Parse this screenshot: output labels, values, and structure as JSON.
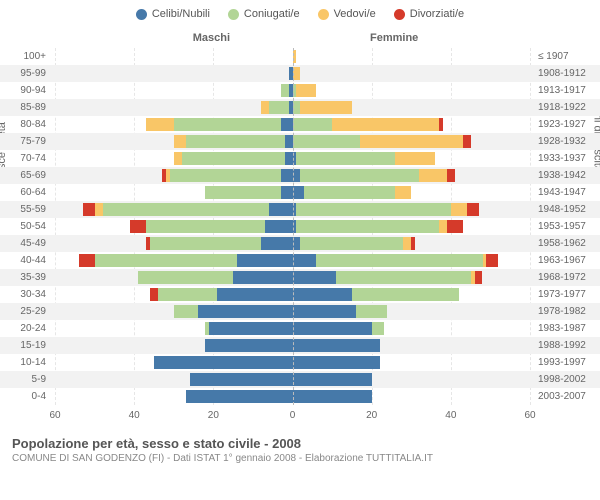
{
  "legend": [
    {
      "label": "Celibi/Nubili",
      "color": "#4679a9"
    },
    {
      "label": "Coniugati/e",
      "color": "#b2d596"
    },
    {
      "label": "Vedovi/e",
      "color": "#f9c667"
    },
    {
      "label": "Divorziati/e",
      "color": "#d53a2a"
    }
  ],
  "side_labels": {
    "left": "Maschi",
    "right": "Femmine"
  },
  "axis_titles": {
    "left": "Fasce di età",
    "right": "Anni di nascita"
  },
  "x_ticks_male": [
    60,
    40,
    20,
    0
  ],
  "x_ticks_female": [
    0,
    20,
    40,
    60
  ],
  "x_max": 60,
  "title": "Popolazione per età, sesso e stato civile - 2008",
  "subtitle": "COMUNE DI SAN GODENZO (FI) - Dati ISTAT 1° gennaio 2008 - Elaborazione TUTTITALIA.IT",
  "colors": {
    "celibi": "#4679a9",
    "coniugati": "#b2d596",
    "vedovi": "#f9c667",
    "divorziati": "#d53a2a",
    "row_alt": "#f2f2f2",
    "grid": "#e6e6e6",
    "center_dash": "#bbbbbb",
    "text": "#666666",
    "bg": "#ffffff"
  },
  "rows": [
    {
      "age": "100+",
      "birth": "≤ 1907",
      "m": [
        0,
        0,
        0,
        0
      ],
      "f": [
        0,
        0,
        1,
        0
      ]
    },
    {
      "age": "95-99",
      "birth": "1908-1912",
      "m": [
        1,
        0,
        0,
        0
      ],
      "f": [
        0,
        0,
        2,
        0
      ]
    },
    {
      "age": "90-94",
      "birth": "1913-1917",
      "m": [
        1,
        2,
        0,
        0
      ],
      "f": [
        0,
        1,
        5,
        0
      ]
    },
    {
      "age": "85-89",
      "birth": "1918-1922",
      "m": [
        1,
        5,
        2,
        0
      ],
      "f": [
        0,
        2,
        13,
        0
      ]
    },
    {
      "age": "80-84",
      "birth": "1923-1927",
      "m": [
        3,
        27,
        7,
        0
      ],
      "f": [
        0,
        10,
        27,
        1
      ]
    },
    {
      "age": "75-79",
      "birth": "1928-1932",
      "m": [
        2,
        25,
        3,
        0
      ],
      "f": [
        0,
        17,
        26,
        2
      ]
    },
    {
      "age": "70-74",
      "birth": "1933-1937",
      "m": [
        2,
        26,
        2,
        0
      ],
      "f": [
        1,
        25,
        10,
        0
      ]
    },
    {
      "age": "65-69",
      "birth": "1938-1942",
      "m": [
        3,
        28,
        1,
        1
      ],
      "f": [
        2,
        30,
        7,
        2
      ]
    },
    {
      "age": "60-64",
      "birth": "1943-1947",
      "m": [
        3,
        19,
        0,
        0
      ],
      "f": [
        3,
        23,
        4,
        0
      ]
    },
    {
      "age": "55-59",
      "birth": "1948-1952",
      "m": [
        6,
        42,
        2,
        3
      ],
      "f": [
        1,
        39,
        4,
        3
      ]
    },
    {
      "age": "50-54",
      "birth": "1953-1957",
      "m": [
        7,
        30,
        0,
        4
      ],
      "f": [
        1,
        36,
        2,
        4
      ]
    },
    {
      "age": "45-49",
      "birth": "1958-1962",
      "m": [
        8,
        28,
        0,
        1
      ],
      "f": [
        2,
        26,
        2,
        1
      ]
    },
    {
      "age": "40-44",
      "birth": "1963-1967",
      "m": [
        14,
        36,
        0,
        4
      ],
      "f": [
        6,
        42,
        1,
        3
      ]
    },
    {
      "age": "35-39",
      "birth": "1968-1972",
      "m": [
        15,
        24,
        0,
        0
      ],
      "f": [
        11,
        34,
        1,
        2
      ]
    },
    {
      "age": "30-34",
      "birth": "1973-1977",
      "m": [
        19,
        15,
        0,
        2
      ],
      "f": [
        15,
        27,
        0,
        0
      ]
    },
    {
      "age": "25-29",
      "birth": "1978-1982",
      "m": [
        24,
        6,
        0,
        0
      ],
      "f": [
        16,
        8,
        0,
        0
      ]
    },
    {
      "age": "20-24",
      "birth": "1983-1987",
      "m": [
        21,
        1,
        0,
        0
      ],
      "f": [
        20,
        3,
        0,
        0
      ]
    },
    {
      "age": "15-19",
      "birth": "1988-1992",
      "m": [
        22,
        0,
        0,
        0
      ],
      "f": [
        22,
        0,
        0,
        0
      ]
    },
    {
      "age": "10-14",
      "birth": "1993-1997",
      "m": [
        35,
        0,
        0,
        0
      ],
      "f": [
        22,
        0,
        0,
        0
      ]
    },
    {
      "age": "5-9",
      "birth": "1998-2002",
      "m": [
        26,
        0,
        0,
        0
      ],
      "f": [
        20,
        0,
        0,
        0
      ]
    },
    {
      "age": "0-4",
      "birth": "2003-2007",
      "m": [
        27,
        0,
        0,
        0
      ],
      "f": [
        20,
        0,
        0,
        0
      ]
    }
  ]
}
